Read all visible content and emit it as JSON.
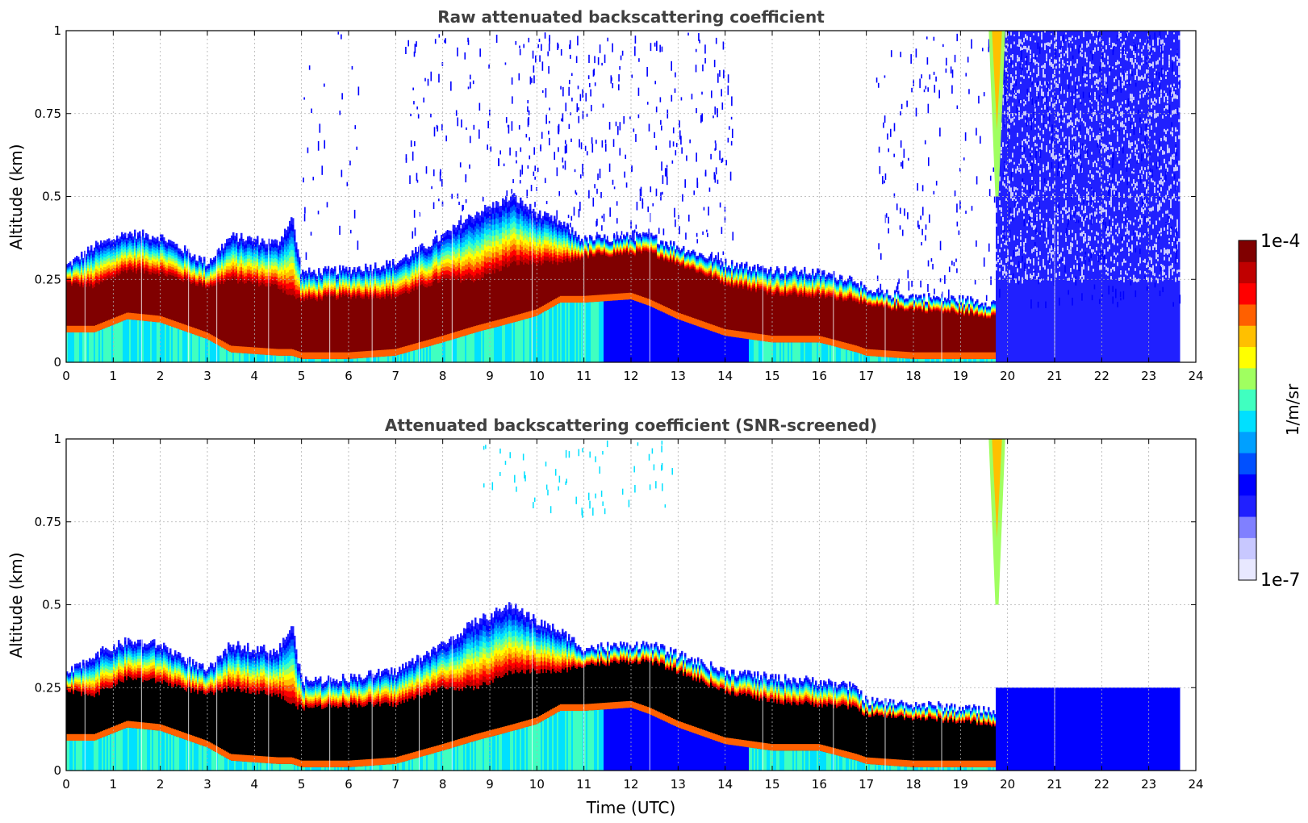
{
  "chart_data": [
    {
      "type": "heatmap",
      "title": "Raw attenuated backscattering coefficient",
      "xlabel": "",
      "ylabel": "Altitude (km)",
      "xlim": [
        0,
        24
      ],
      "ylim": [
        0,
        1
      ],
      "x_ticks": [
        "0",
        "1",
        "2",
        "3",
        "4",
        "5",
        "6",
        "7",
        "8",
        "9",
        "10",
        "11",
        "12",
        "13",
        "14",
        "15",
        "16",
        "17",
        "18",
        "19",
        "20",
        "21",
        "22",
        "23",
        "24"
      ],
      "y_ticks": [
        "0",
        "0.25",
        "0.5",
        "0.75",
        "1"
      ],
      "grid": true,
      "boundary_layer": {
        "x": [
          0,
          0.6,
          1.3,
          2,
          3,
          3.5,
          4.5,
          4.8,
          5,
          6,
          7,
          8,
          8.7,
          9.5,
          10,
          10.5,
          11,
          12,
          12.4,
          13,
          14,
          15,
          16,
          16.8,
          17,
          18,
          19,
          19.7
        ],
        "top": [
          0.29,
          0.35,
          0.39,
          0.38,
          0.3,
          0.38,
          0.36,
          0.44,
          0.27,
          0.28,
          0.3,
          0.38,
          0.45,
          0.5,
          0.45,
          0.42,
          0.37,
          0.38,
          0.38,
          0.35,
          0.3,
          0.28,
          0.27,
          0.25,
          0.21,
          0.2,
          0.19,
          0.18
        ],
        "core_top": [
          0.24,
          0.23,
          0.28,
          0.27,
          0.23,
          0.25,
          0.23,
          0.2,
          0.19,
          0.2,
          0.2,
          0.25,
          0.25,
          0.3,
          0.3,
          0.3,
          0.32,
          0.33,
          0.33,
          0.3,
          0.24,
          0.21,
          0.2,
          0.19,
          0.17,
          0.16,
          0.15,
          0.14
        ],
        "core_bottom": [
          0.09,
          0.09,
          0.13,
          0.12,
          0.07,
          0.03,
          0.02,
          0.02,
          0.01,
          0.01,
          0.02,
          0.06,
          0.09,
          0.12,
          0.14,
          0.18,
          0.18,
          0.19,
          0.17,
          0.13,
          0.08,
          0.06,
          0.06,
          0.03,
          0.02,
          0.01,
          0.01,
          0.01
        ]
      },
      "noise_regions": [
        {
          "x": [
            5.0,
            6.2
          ],
          "density": 0.35
        },
        {
          "x": [
            7.2,
            9.5
          ],
          "density": 0.55
        },
        {
          "x": [
            9.5,
            14.2
          ],
          "density": 0.9
        },
        {
          "x": [
            17.2,
            19.7
          ],
          "density": 0.7
        },
        {
          "x": [
            19.7,
            23.65
          ],
          "density": 1.0
        }
      ],
      "instrument_noise_start": 19.75,
      "data_end": 23.65,
      "cloud_event": {
        "x": [
          19.6,
          19.95
        ],
        "top": 1.0,
        "bottom": 0.5
      }
    },
    {
      "type": "heatmap",
      "title": "Attenuated backscattering coefficient (SNR-screened)",
      "xlabel": "Time (UTC)",
      "ylabel": "Altitude (km)",
      "xlim": [
        0,
        24
      ],
      "ylim": [
        0,
        1
      ],
      "x_ticks": [
        "0",
        "1",
        "2",
        "3",
        "4",
        "5",
        "6",
        "7",
        "8",
        "9",
        "10",
        "11",
        "12",
        "13",
        "14",
        "15",
        "16",
        "17",
        "18",
        "19",
        "20",
        "21",
        "22",
        "23",
        "24"
      ],
      "y_ticks": [
        "0",
        "0.25",
        "0.5",
        "0.75",
        "1"
      ],
      "grid": true,
      "saturation_color": "#000000",
      "screened_noise_top": 0.25
    }
  ],
  "colorbar": {
    "label": "1/m/sr",
    "max_label": "1e-4",
    "min_label": "1e-7",
    "colors": [
      "#e8e8ff",
      "#c8c8ff",
      "#8080ff",
      "#2020ff",
      "#0000ff",
      "#0050ff",
      "#00a0ff",
      "#00e0ff",
      "#40ffc0",
      "#a0ff60",
      "#ffff00",
      "#ffc000",
      "#ff6000",
      "#ff0000",
      "#c00000",
      "#800000"
    ]
  }
}
